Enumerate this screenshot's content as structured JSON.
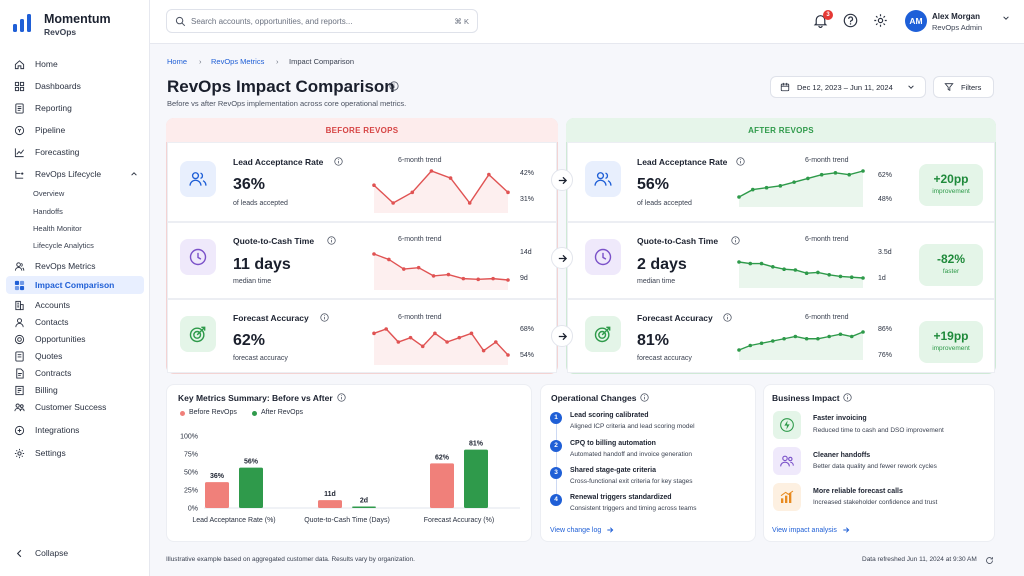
{
  "app": {
    "name": "Momentum",
    "sub": "RevOps"
  },
  "colors": {
    "accent": "#1f5fd6",
    "before": "#e05353",
    "after": "#2e9a4a",
    "before_bg": "#fdecec",
    "after_bg": "#e6f5ea"
  },
  "sidebar": {
    "items": [
      {
        "label": "Home",
        "icon": "home-icon"
      },
      {
        "label": "Dashboards",
        "icon": "grid-icon"
      },
      {
        "label": "Reporting",
        "icon": "doc-icon"
      },
      {
        "label": "Pipeline",
        "icon": "funnel-icon"
      },
      {
        "label": "Forecasting",
        "icon": "trend-icon"
      },
      {
        "label": "RevOps Lifecycle",
        "icon": "flow-icon"
      },
      {
        "label": "RevOps Metrics",
        "icon": "users-icon"
      },
      {
        "label": "Impact Comparison",
        "icon": "compare-icon"
      },
      {
        "label": "Accounts",
        "icon": "building-icon"
      },
      {
        "label": "Contacts",
        "icon": "contact-icon"
      },
      {
        "label": "Opportunities",
        "icon": "target-icon"
      },
      {
        "label": "Quotes",
        "icon": "quote-icon"
      },
      {
        "label": "Contracts",
        "icon": "contract-icon"
      },
      {
        "label": "Billing",
        "icon": "billing-icon"
      },
      {
        "label": "Customer Success",
        "icon": "success-icon"
      },
      {
        "label": "Integrations",
        "icon": "plug-icon"
      },
      {
        "label": "Settings",
        "icon": "gear-icon"
      }
    ],
    "lifecycle_sub": [
      "Overview",
      "Handoffs",
      "Health Monitor",
      "Lifecycle Analytics"
    ],
    "collapse": "Collapse"
  },
  "topbar": {
    "search_placeholder": "Search accounts, opportunities, and reports...",
    "search_shortcut": "⌘ K",
    "notifications": "3",
    "user_initials": "AM",
    "user_name": "Alex Morgan",
    "user_role": "RevOps Admin"
  },
  "breadcrumb": [
    "Home",
    "RevOps Metrics",
    "Impact Comparison"
  ],
  "page": {
    "title": "RevOps Impact Comparison",
    "subtitle": "Before vs after RevOps implementation across core operational metrics.",
    "date_range": "Dec 12, 2023 – Jun 11, 2024",
    "filters": "Filters"
  },
  "comparison": {
    "before_label": "BEFORE REVOPS",
    "after_label": "AFTER REVOPS",
    "trend_label": "6-month trend",
    "metrics": [
      {
        "title": "Lead Acceptance Rate",
        "before": {
          "value": "36%",
          "caption": "of leads accepted",
          "hi": "42%",
          "lo": "31%",
          "trend": [
            38,
            33,
            36,
            42,
            40,
            33,
            41,
            36
          ]
        },
        "after": {
          "value": "56%",
          "caption": "of leads accepted",
          "hi": "62%",
          "lo": "48%",
          "trend": [
            48,
            52,
            53,
            54,
            56,
            58,
            60,
            61,
            60,
            62
          ]
        },
        "delta": "+20pp",
        "delta_label": "improvement"
      },
      {
        "title": "Quote-to-Cash Time",
        "before": {
          "value": "11 days",
          "caption": "median time",
          "hi": "14d",
          "lo": "9d",
          "trend": [
            13,
            12.2,
            10.8,
            11,
            9.8,
            10,
            9.4,
            9.3,
            9.4,
            9.2
          ]
        },
        "after": {
          "value": "2 days",
          "caption": "median time",
          "hi": "3.5d",
          "lo": "1d",
          "trend": [
            3.4,
            3.2,
            3.2,
            2.8,
            2.5,
            2.4,
            2,
            2.1,
            1.8,
            1.6,
            1.5,
            1.4
          ]
        },
        "delta": "-82%",
        "delta_label": "faster"
      },
      {
        "title": "Forecast Accuracy",
        "before": {
          "value": "62%",
          "caption": "forecast accuracy",
          "hi": "68%",
          "lo": "54%",
          "trend": [
            62,
            63,
            60,
            61,
            59,
            62,
            60,
            61,
            62,
            58,
            60,
            57
          ]
        },
        "after": {
          "value": "81%",
          "caption": "forecast accuracy",
          "hi": "86%",
          "lo": "76%",
          "trend": [
            77,
            79,
            80,
            81,
            82,
            83,
            82,
            82,
            83,
            84,
            83,
            85
          ]
        },
        "delta": "+19pp",
        "delta_label": "improvement"
      }
    ]
  },
  "summary": {
    "title": "Key Metrics Summary: Before vs After",
    "legend_before": "Before RevOps",
    "legend_after": "After RevOps"
  },
  "chart_data": {
    "type": "bar",
    "title": "Key Metrics Summary: Before vs After",
    "categories": [
      "Lead Acceptance Rate (%)",
      "Quote-to-Cash Time (Days)",
      "Forecast Accuracy (%)"
    ],
    "y_ticks": [
      "100%",
      "75%",
      "50%",
      "25%",
      "0%"
    ],
    "ylim": [
      0,
      100
    ],
    "series": [
      {
        "name": "Before RevOps",
        "values": [
          36,
          11,
          62
        ],
        "labels": [
          "36%",
          "11d",
          "62%"
        ],
        "color": "#f0807a"
      },
      {
        "name": "After RevOps",
        "values": [
          56,
          2,
          81
        ],
        "labels": [
          "56%",
          "2d",
          "81%"
        ],
        "color": "#2f9a4b"
      }
    ],
    "legend": "top-left",
    "grid": false
  },
  "operations": {
    "title": "Operational Changes",
    "items": [
      {
        "num": "1",
        "title": "Lead scoring calibrated",
        "desc": "Aligned ICP criteria and lead scoring model"
      },
      {
        "num": "2",
        "title": "CPQ to billing automation",
        "desc": "Automated handoff and invoice generation"
      },
      {
        "num": "3",
        "title": "Shared stage-gate criteria",
        "desc": "Cross-functional exit criteria for key stages"
      },
      {
        "num": "4",
        "title": "Renewal triggers standardized",
        "desc": "Consistent triggers and timing across teams"
      }
    ],
    "link": "View change log"
  },
  "impact": {
    "title": "Business Impact",
    "items": [
      {
        "title": "Faster invoicing",
        "desc": "Reduced time to cash and DSO improvement",
        "icon": "bolt-icon"
      },
      {
        "title": "Cleaner handoffs",
        "desc": "Better data quality and fewer rework cycles",
        "icon": "team-icon"
      },
      {
        "title": "More reliable forecast calls",
        "desc": "Increased stakeholder confidence and trust",
        "icon": "bar-chart-icon"
      }
    ],
    "link": "View impact analysis"
  },
  "footer": {
    "note": "Illustrative example based on aggregated customer data. Results vary by organization.",
    "refreshed": "Data refreshed Jun 11, 2024 at 9:30 AM"
  }
}
